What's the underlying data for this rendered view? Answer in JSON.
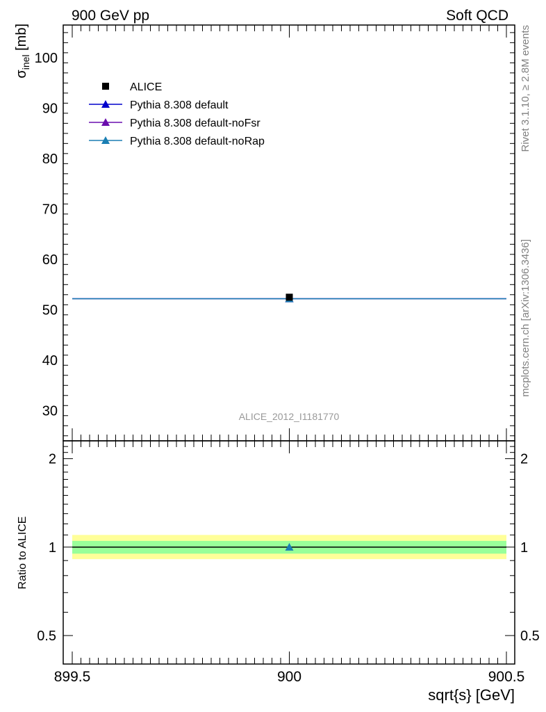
{
  "header": {
    "left": "900 GeV pp",
    "right": "Soft QCD"
  },
  "side": {
    "rivet": "Rivet 3.1.10, ≥ 2.8M events",
    "mcplots": "mcplots.cern.ch [arXiv:1306.3436]"
  },
  "chart_data": {
    "type": "scatter",
    "analysis_label": "ALICE_2012_I1181770",
    "xlabel": "sqrt{s} [GeV]",
    "xlim": [
      899.5,
      900.5
    ],
    "x_ticks": [
      899.5,
      900,
      900.5
    ],
    "x_tick_labels": [
      "899.5",
      "900",
      "900.5"
    ],
    "main_panel": {
      "ylabel_main": "σ",
      "ylabel_sub": "inel",
      "ylabel_unit": " [mb]",
      "ylim": [
        24,
        106.5
      ],
      "y_ticks": [
        30,
        40,
        50,
        60,
        70,
        80,
        90,
        100
      ],
      "data": {
        "name": "ALICE",
        "x": [
          900
        ],
        "y": [
          52.5
        ],
        "color": "#000000"
      },
      "series": [
        {
          "name": "Pythia 8.308 default",
          "x": [
            900
          ],
          "y": [
            52.2
          ],
          "color": "#0000cc"
        },
        {
          "name": "Pythia 8.308 default-noFsr",
          "x": [
            900
          ],
          "y": [
            52.2
          ],
          "color": "#6a0dad"
        },
        {
          "name": "Pythia 8.308 default-noRap",
          "x": [
            900
          ],
          "y": [
            52.2
          ],
          "color": "#1b7fb3"
        }
      ],
      "legend_position": "top-left"
    },
    "ratio_panel": {
      "ylabel": "Ratio to ALICE",
      "ylim": [
        0.4,
        2.3
      ],
      "log_y": true,
      "y_ticks": [
        0.5,
        1,
        2
      ],
      "y_tick_labels": [
        "0.5",
        "1",
        "2"
      ],
      "band_inner": [
        0.95,
        1.05
      ],
      "band_outer": [
        0.91,
        1.1
      ],
      "band_inner_color": "#99ff99",
      "band_outer_color": "#ffff99",
      "ratio_points": {
        "x": [
          900
        ],
        "y": [
          1.0
        ],
        "color": "#1b7fb3"
      }
    }
  }
}
